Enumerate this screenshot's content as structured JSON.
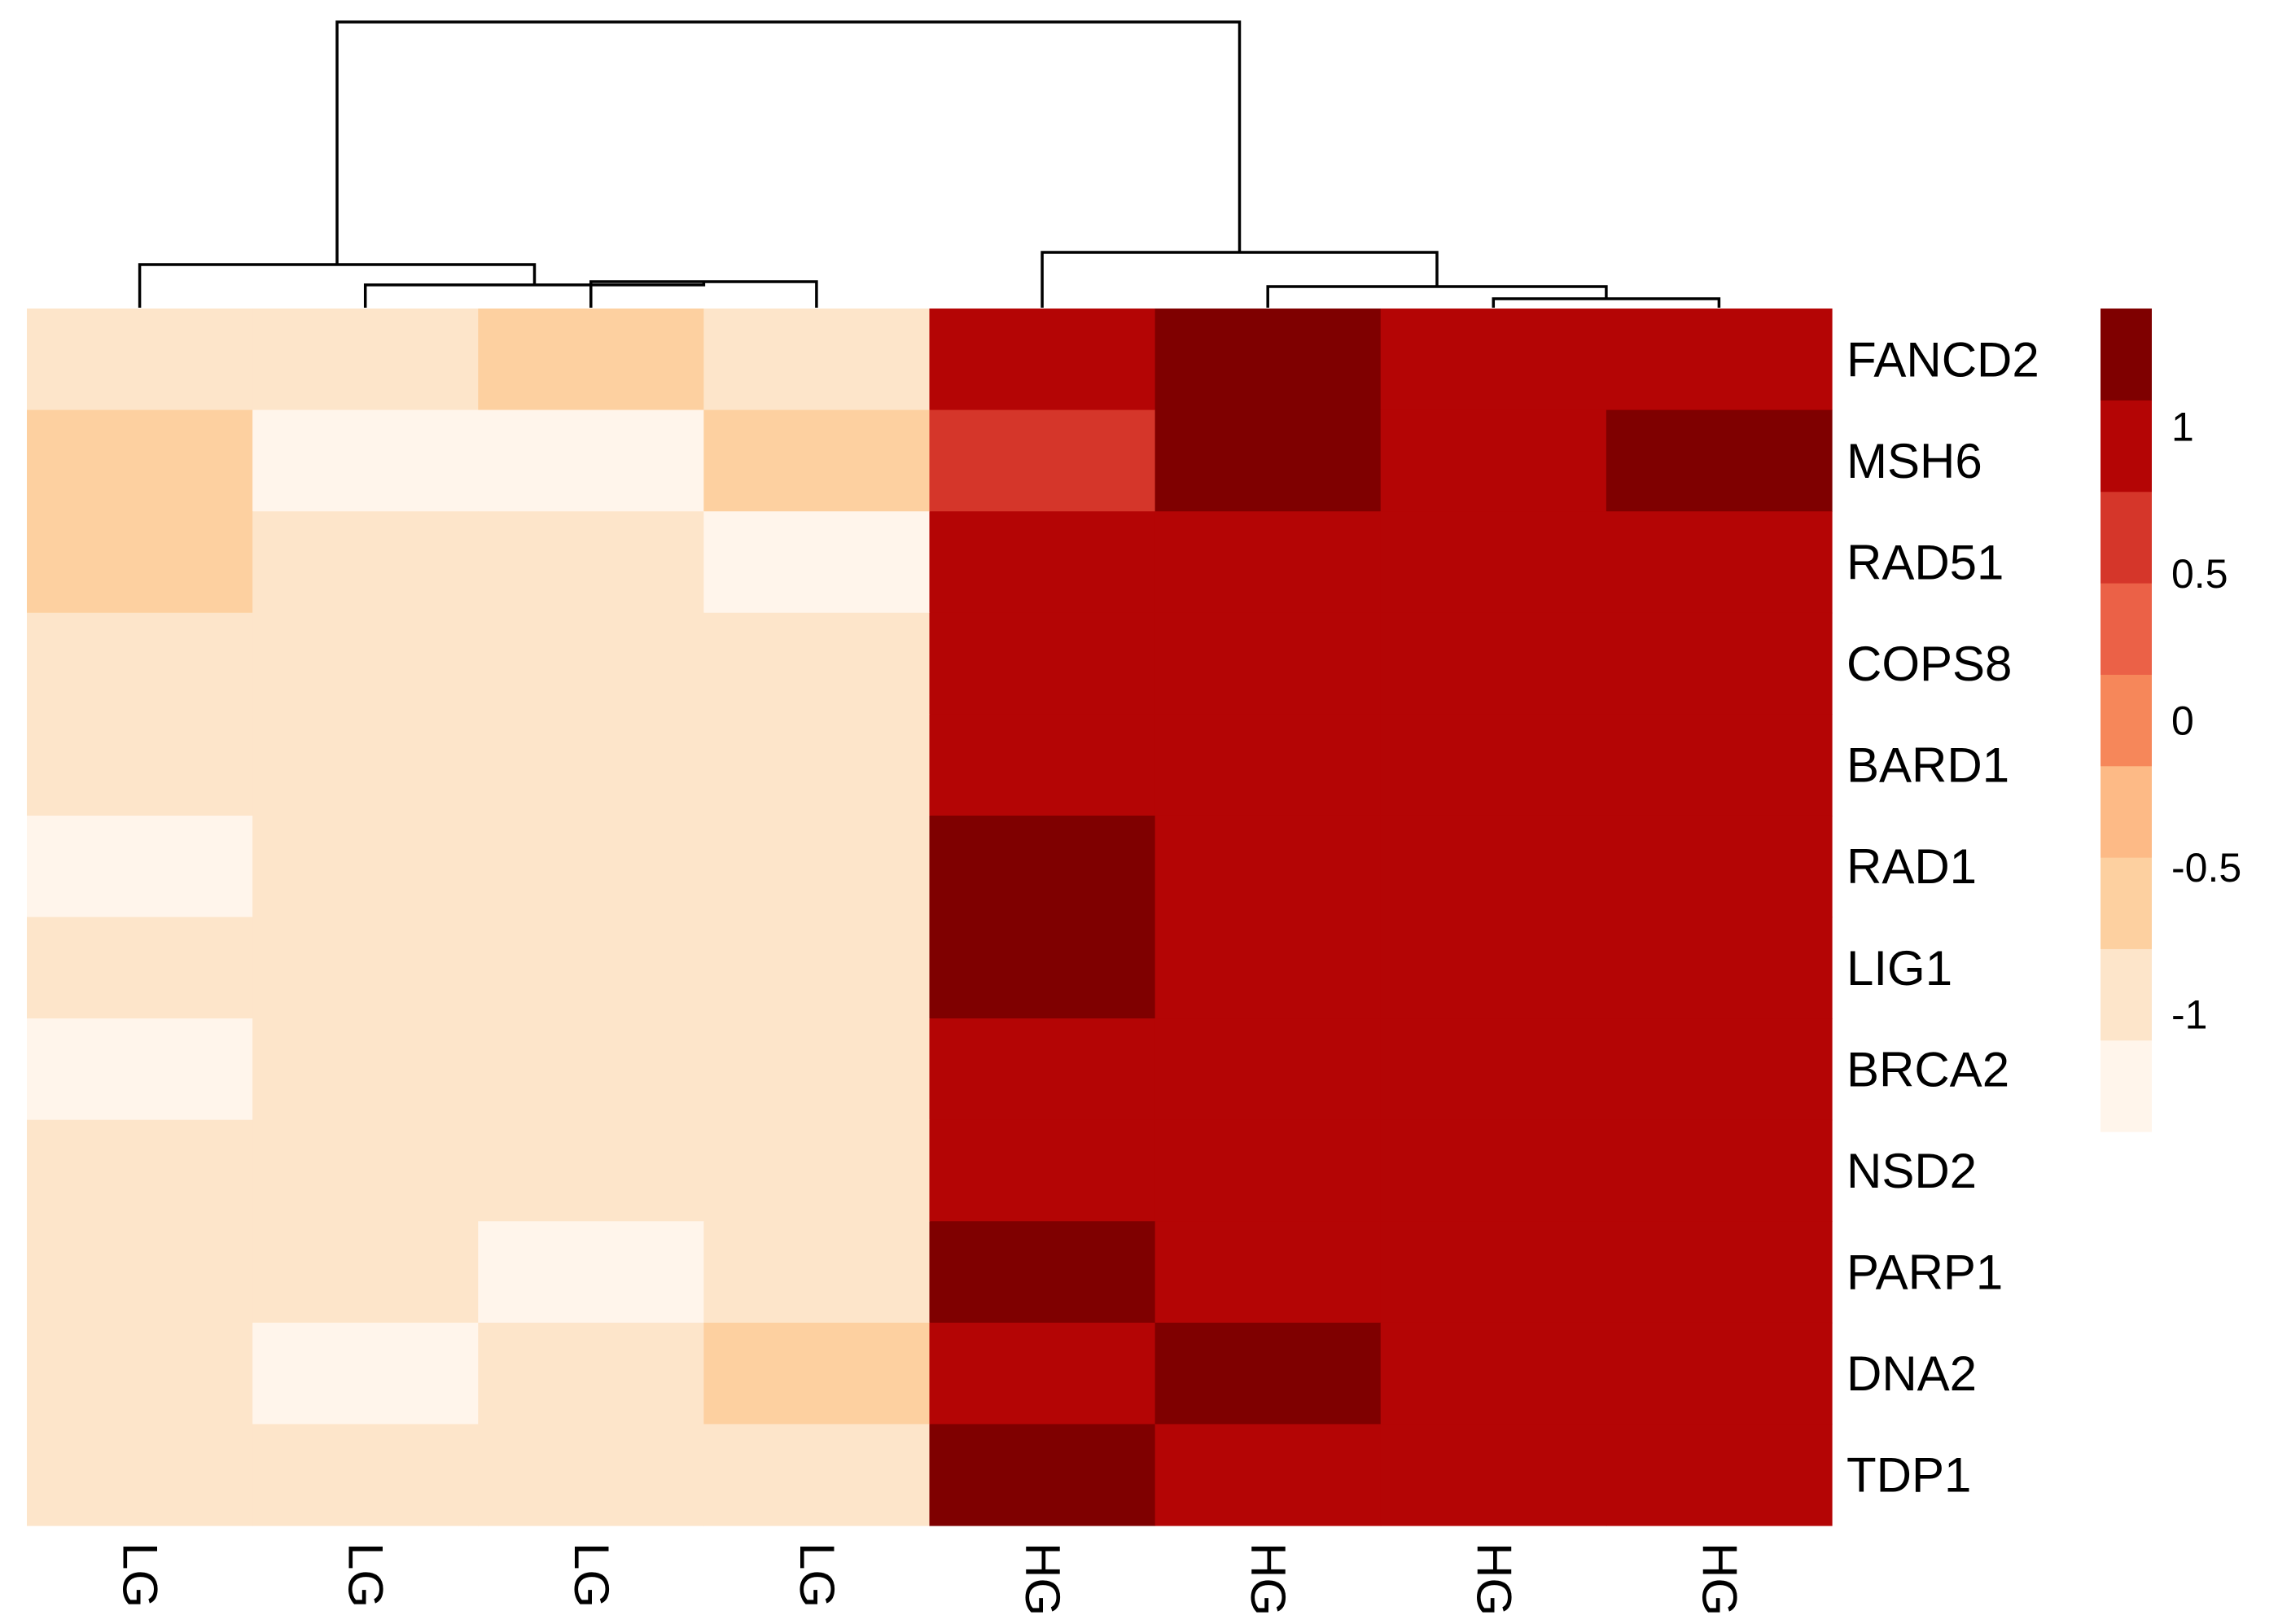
{
  "chart_data": {
    "type": "heatmap",
    "title": "",
    "rows": [
      "FANCD2",
      "MSH6",
      "RAD51",
      "COPS8",
      "BARD1",
      "RAD1",
      "LIG1",
      "BRCA2",
      "NSD2",
      "PARP1",
      "DNA2",
      "TDP1"
    ],
    "columns": [
      "LG",
      "LG",
      "LG",
      "LG",
      "HG",
      "HG",
      "HG",
      "HG"
    ],
    "values": [
      [
        -0.9,
        -0.9,
        -0.6,
        -0.9,
        0.8,
        1.4,
        1.0,
        1.0
      ],
      [
        -0.6,
        -1.2,
        -1.2,
        -0.6,
        0.6,
        1.4,
        1.0,
        1.4
      ],
      [
        -0.6,
        -0.9,
        -0.9,
        -1.2,
        1.0,
        1.0,
        1.0,
        1.0
      ],
      [
        -0.9,
        -0.9,
        -0.9,
        -0.9,
        1.0,
        1.0,
        1.0,
        1.0
      ],
      [
        -0.9,
        -0.9,
        -0.9,
        -0.9,
        1.0,
        1.0,
        1.0,
        1.0
      ],
      [
        -1.2,
        -0.9,
        -0.9,
        -0.9,
        1.4,
        1.0,
        1.0,
        1.0
      ],
      [
        -0.9,
        -0.9,
        -0.9,
        -0.9,
        1.4,
        1.0,
        1.0,
        0.8
      ],
      [
        -1.2,
        -0.9,
        -0.9,
        -0.9,
        0.8,
        1.0,
        1.0,
        1.0
      ],
      [
        -0.9,
        -0.9,
        -0.9,
        -0.9,
        1.0,
        1.0,
        1.0,
        1.0
      ],
      [
        -0.9,
        -0.9,
        -1.2,
        -0.9,
        1.4,
        1.0,
        1.0,
        1.0
      ],
      [
        -0.9,
        -1.2,
        -0.9,
        -0.6,
        1.0,
        1.4,
        0.8,
        1.0
      ],
      [
        -0.9,
        -0.9,
        -0.9,
        -0.9,
        1.4,
        0.8,
        1.0,
        1.0
      ]
    ],
    "color_scale": {
      "min": -1.4,
      "max": 1.4,
      "colors": [
        "#FFF5EB",
        "#FDE5CA",
        "#FDD0A0",
        "#FDBA86",
        "#F6875A",
        "#EB6147",
        "#D5362A",
        "#B40505",
        "#7F0000"
      ],
      "ticks": [
        1,
        0.5,
        0,
        -0.5,
        -1
      ],
      "tick_labels": [
        "1",
        "0.5",
        "0",
        "-0.5",
        "-1"
      ]
    },
    "column_dendrogram": true
  }
}
